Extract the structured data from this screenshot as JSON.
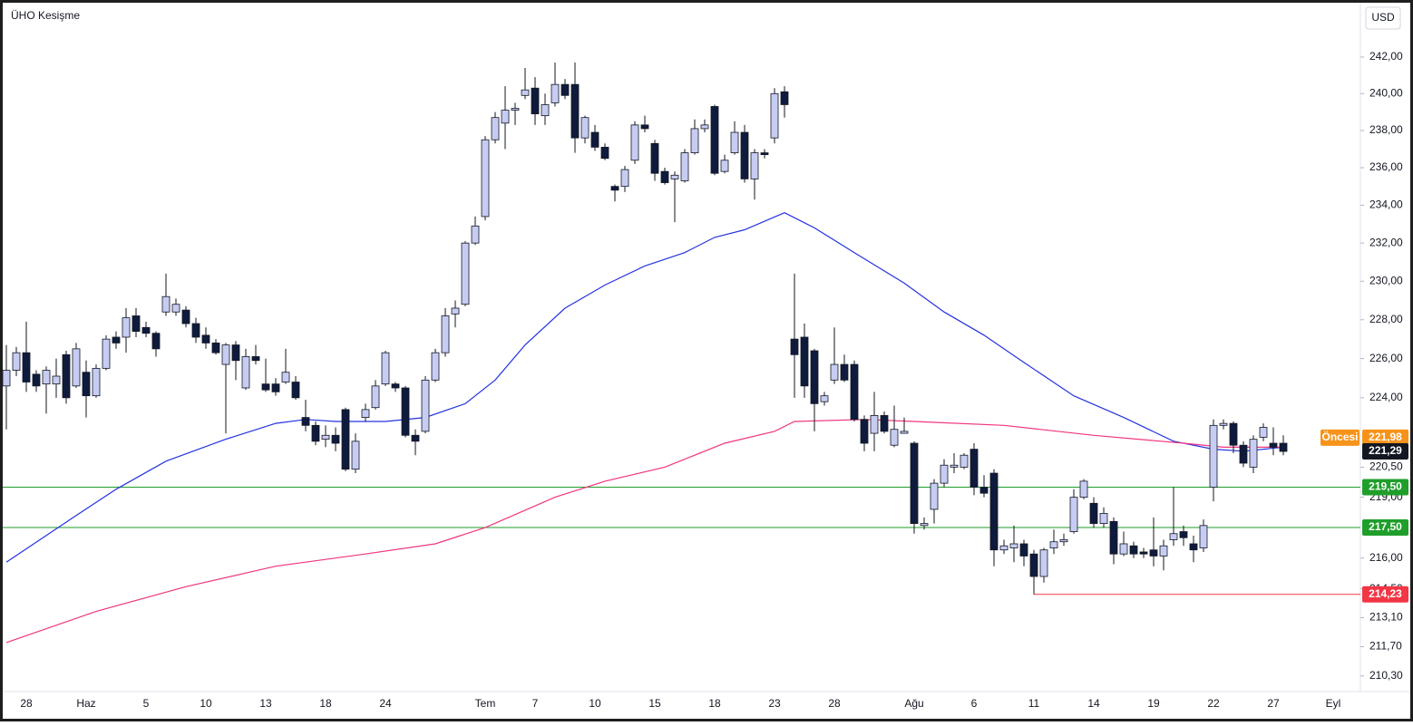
{
  "chart_data": {
    "type": "candlestick",
    "title": "ÜHO Kesişme",
    "currency": "USD",
    "log_scale": true,
    "ylim": [
      209.6,
      245.0
    ],
    "yticks": [
      {
        "value": 242,
        "label": "242,00"
      },
      {
        "value": 240,
        "label": "240,00"
      },
      {
        "value": 238,
        "label": "238,00"
      },
      {
        "value": 236,
        "label": "236,00"
      },
      {
        "value": 234,
        "label": "234,00"
      },
      {
        "value": 232,
        "label": "232,00"
      },
      {
        "value": 230,
        "label": "230,00"
      },
      {
        "value": 228,
        "label": "228,00"
      },
      {
        "value": 226,
        "label": "226,00"
      },
      {
        "value": 224,
        "label": "224,00"
      },
      {
        "value": 220.5,
        "label": "220,50"
      },
      {
        "value": 219,
        "label": "219,00"
      },
      {
        "value": 216,
        "label": "216,00"
      },
      {
        "value": 214.5,
        "label": "214,50"
      },
      {
        "value": 213.1,
        "label": "213,10"
      },
      {
        "value": 211.7,
        "label": "211,70"
      },
      {
        "value": 210.3,
        "label": "210,30"
      }
    ],
    "categories": [
      null,
      null,
      "28",
      null,
      null,
      null,
      null,
      null,
      "Haz",
      null,
      null,
      null,
      null,
      null,
      "5",
      null,
      null,
      null,
      null,
      null,
      "10",
      null,
      null,
      null,
      null,
      null,
      "13",
      null,
      null,
      null,
      null,
      null,
      "18",
      null,
      null,
      null,
      null,
      null,
      "24",
      null,
      null,
      null,
      null,
      null,
      null,
      null,
      null,
      null,
      "Tem",
      null,
      null,
      null,
      null,
      "7",
      null,
      null,
      null,
      null,
      null,
      "10",
      null,
      null,
      null,
      null,
      null,
      "15",
      null,
      null,
      null,
      null,
      null,
      "18",
      null,
      null,
      null,
      null,
      null,
      "23",
      null,
      null,
      null,
      null,
      null,
      "28",
      null,
      null,
      null,
      null,
      null,
      null,
      null,
      "Ağu",
      null,
      null,
      null,
      null,
      null,
      "6",
      null,
      null,
      null,
      null,
      null,
      "11",
      null,
      null,
      null,
      null,
      null,
      "14",
      null,
      null,
      null,
      null,
      null,
      "19",
      null,
      null,
      null,
      null,
      null,
      "22",
      null,
      null,
      null,
      null,
      null,
      "27",
      null,
      null,
      null,
      null,
      null,
      "Eyl"
    ],
    "up_color": "#c7ccf3",
    "down_color": "#0f1b3d",
    "open": [
      224.6,
      225.4,
      226.3,
      225.2,
      224.7,
      224.7,
      226.2,
      224.6,
      225.3,
      224.1,
      225.5,
      227.1,
      227.1,
      228.2,
      227.6,
      227.3,
      228.4,
      228.4,
      228.5,
      227.8,
      227.2,
      226.8,
      225.7,
      226.7,
      224.5,
      226.1,
      224.7,
      224.7,
      224.8,
      224.8,
      223.0,
      222.6,
      221.9,
      222.1,
      223.4,
      220.4,
      223.0,
      223.5,
      224.7,
      224.7,
      224.5,
      222.1,
      222.3,
      224.9,
      226.3,
      228.3,
      228.8,
      232.0,
      233.4,
      237.5,
      238.4,
      239.1,
      239.9,
      240.3,
      238.8,
      239.5,
      240.5,
      240.5,
      237.6,
      237.9,
      237.1,
      235.0,
      235.0,
      236.4,
      238.3,
      237.3,
      235.8,
      235.4,
      235.3,
      236.8,
      238.1,
      239.3,
      235.8,
      236.8,
      237.9,
      235.4,
      236.8,
      237.6,
      240.1,
      227.0,
      227.1,
      226.4,
      223.8,
      224.9,
      225.7,
      225.7,
      222.9,
      222.2,
      223.1,
      221.6,
      222.2,
      221.7,
      217.6,
      218.4,
      219.7,
      220.5,
      220.5,
      221.4,
      219.5,
      220.2,
      216.4,
      216.5,
      216.7,
      216.2,
      215.1,
      216.5,
      216.8,
      217.3,
      219.0,
      218.7,
      217.7,
      217.8,
      216.2,
      216.6,
      216.3,
      216.4,
      216.1,
      216.9,
      217.3,
      216.7,
      216.5,
      219.5,
      222.6,
      222.7,
      221.6,
      220.5,
      222.0,
      221.7,
      221.7,
      null,
      null,
      null,
      null,
      null
    ],
    "high": [
      226.7,
      226.6,
      227.9,
      225.4,
      225.6,
      226.0,
      226.4,
      226.8,
      225.9,
      225.7,
      227.2,
      227.4,
      228.6,
      228.6,
      227.9,
      227.4,
      230.4,
      229.1,
      228.7,
      228.1,
      227.6,
      227.0,
      226.8,
      226.9,
      226.5,
      226.7,
      226.0,
      225.0,
      226.5,
      225.1,
      223.9,
      222.8,
      222.6,
      222.5,
      223.5,
      222.2,
      223.7,
      224.9,
      226.4,
      224.8,
      224.6,
      222.4,
      225.1,
      226.5,
      228.6,
      229.0,
      232.1,
      233.4,
      237.7,
      239.0,
      240.4,
      239.5,
      241.4,
      240.9,
      240.0,
      241.7,
      240.8,
      241.7,
      238.8,
      238.3,
      237.3,
      235.1,
      236.1,
      238.5,
      238.8,
      237.5,
      236.0,
      235.8,
      237.0,
      238.6,
      238.6,
      239.4,
      236.7,
      238.5,
      238.3,
      237.0,
      237.0,
      240.3,
      240.4,
      230.4,
      227.8,
      226.5,
      224.3,
      227.6,
      226.2,
      225.9,
      223.1,
      224.3,
      223.3,
      223.6,
      223.0,
      221.8,
      218.0,
      219.9,
      220.9,
      221.2,
      221.2,
      221.7,
      220.1,
      220.4,
      216.9,
      217.6,
      216.9,
      216.4,
      216.5,
      217.4,
      217.2,
      219.4,
      219.9,
      219.0,
      218.5,
      218.0,
      217.3,
      216.8,
      216.5,
      218.0,
      216.9,
      219.5,
      217.6,
      217.1,
      217.9,
      222.9,
      222.9,
      222.8,
      221.8,
      222.1,
      222.7,
      222.5,
      222.1,
      null,
      null,
      null,
      null,
      null
    ],
    "low": [
      222.4,
      225.1,
      224.3,
      224.3,
      223.2,
      224.0,
      223.7,
      224.5,
      223.0,
      224.0,
      225.4,
      226.5,
      226.3,
      227.1,
      227.1,
      226.1,
      228.2,
      228.2,
      227.6,
      226.8,
      226.5,
      226.2,
      222.2,
      224.9,
      224.4,
      225.7,
      224.3,
      224.1,
      224.7,
      223.9,
      222.3,
      221.6,
      221.5,
      221.3,
      220.3,
      220.2,
      222.8,
      223.4,
      224.6,
      224.3,
      222.0,
      221.1,
      222.2,
      224.8,
      226.1,
      227.6,
      228.7,
      231.9,
      233.2,
      237.3,
      237.0,
      238.3,
      239.7,
      238.3,
      238.3,
      239.3,
      239.7,
      236.8,
      237.3,
      236.9,
      236.4,
      234.2,
      234.7,
      236.2,
      237.9,
      235.3,
      235.1,
      233.1,
      235.2,
      236.7,
      237.9,
      235.6,
      235.7,
      236.7,
      235.2,
      234.3,
      236.5,
      237.3,
      238.7,
      224.0,
      224.0,
      222.3,
      223.6,
      224.7,
      224.8,
      222.8,
      221.3,
      221.3,
      222.2,
      221.5,
      222.2,
      217.2,
      217.4,
      217.7,
      219.5,
      220.2,
      220.4,
      219.1,
      219.0,
      215.6,
      216.2,
      215.8,
      215.6,
      214.23,
      214.8,
      216.2,
      216.6,
      217.2,
      218.9,
      217.5,
      217.5,
      215.7,
      216.1,
      216.0,
      216.0,
      215.6,
      215.4,
      216.6,
      216.6,
      215.8,
      216.3,
      218.8,
      222.4,
      221.2,
      220.5,
      220.2,
      221.8,
      221.1,
      221.1,
      null,
      null,
      null,
      null,
      null
    ],
    "close": [
      225.4,
      226.3,
      224.8,
      224.6,
      225.4,
      225.1,
      224.0,
      226.5,
      224.1,
      225.5,
      227.0,
      226.8,
      228.1,
      227.4,
      227.3,
      226.5,
      229.2,
      228.8,
      227.8,
      227.1,
      226.8,
      226.3,
      226.7,
      225.9,
      226.1,
      225.9,
      224.4,
      224.3,
      225.3,
      224.0,
      222.6,
      221.8,
      222.1,
      221.7,
      220.4,
      221.8,
      223.4,
      224.6,
      226.3,
      224.5,
      222.1,
      221.8,
      224.9,
      226.3,
      228.2,
      228.6,
      232.0,
      232.9,
      237.5,
      238.7,
      239.1,
      239.2,
      240.2,
      238.9,
      239.4,
      240.5,
      239.9,
      237.6,
      238.7,
      237.1,
      236.5,
      234.8,
      235.9,
      238.3,
      238.1,
      235.7,
      235.2,
      235.6,
      236.8,
      238.1,
      238.3,
      235.7,
      236.4,
      237.9,
      235.4,
      236.8,
      236.7,
      240.0,
      239.4,
      226.2,
      224.6,
      223.7,
      224.1,
      225.7,
      224.9,
      222.9,
      221.7,
      223.1,
      222.3,
      222.4,
      222.3,
      217.7,
      217.7,
      219.7,
      220.6,
      220.6,
      221.1,
      219.5,
      219.2,
      216.4,
      216.6,
      216.7,
      216.1,
      215.1,
      216.4,
      216.8,
      216.9,
      219.0,
      219.8,
      217.7,
      218.2,
      216.2,
      216.7,
      216.2,
      216.2,
      216.1,
      216.6,
      217.2,
      217.0,
      216.4,
      217.6,
      222.6,
      222.7,
      221.6,
      220.7,
      221.9,
      222.5,
      221.5,
      221.29,
      null,
      null,
      null,
      null,
      null
    ],
    "overlays": [
      {
        "color": "#2433e0",
        "x": [
          0,
          7,
          11,
          16,
          22,
          27,
          30,
          33,
          38,
          42,
          46,
          49,
          52,
          56,
          60,
          64,
          68,
          71,
          74,
          78,
          81,
          85,
          90,
          94,
          98,
          102,
          107,
          112,
          117,
          121,
          124,
          128
        ],
        "values": [
          215.8,
          218.1,
          219.4,
          220.8,
          221.9,
          222.7,
          222.9,
          222.8,
          222.8,
          223.0,
          223.7,
          224.9,
          226.7,
          228.6,
          229.8,
          230.8,
          231.5,
          232.3,
          232.7,
          233.6,
          232.8,
          231.5,
          229.9,
          228.4,
          227.2,
          225.8,
          224.1,
          223.0,
          221.8,
          221.4,
          221.3,
          221.5
        ]
      },
      {
        "color": "#f0357f",
        "x": [
          0,
          9,
          18,
          27,
          36,
          43,
          48,
          55,
          60,
          66,
          72,
          77,
          79,
          86,
          91,
          100,
          109,
          118,
          122,
          128
        ],
        "values": [
          211.9,
          213.4,
          214.6,
          215.6,
          216.2,
          216.7,
          217.5,
          219.0,
          219.8,
          220.5,
          221.7,
          222.3,
          222.8,
          222.9,
          222.8,
          222.6,
          222.1,
          221.7,
          221.5,
          221.5
        ]
      }
    ],
    "levels": [
      {
        "value": 219.5,
        "label": "219,50",
        "color": "#1f9e2a"
      },
      {
        "value": 217.5,
        "label": "217,50",
        "color": "#1f9e2a"
      },
      {
        "value": 214.23,
        "label": "214,23",
        "color": "#f23645",
        "x_start": 103
      }
    ],
    "pre_market": {
      "name": "Öncesi",
      "value": 221.98,
      "label": "221,98",
      "color": "#f7931a"
    },
    "last_price": {
      "value": 221.29,
      "label": "221,29",
      "color": "#131722"
    }
  }
}
